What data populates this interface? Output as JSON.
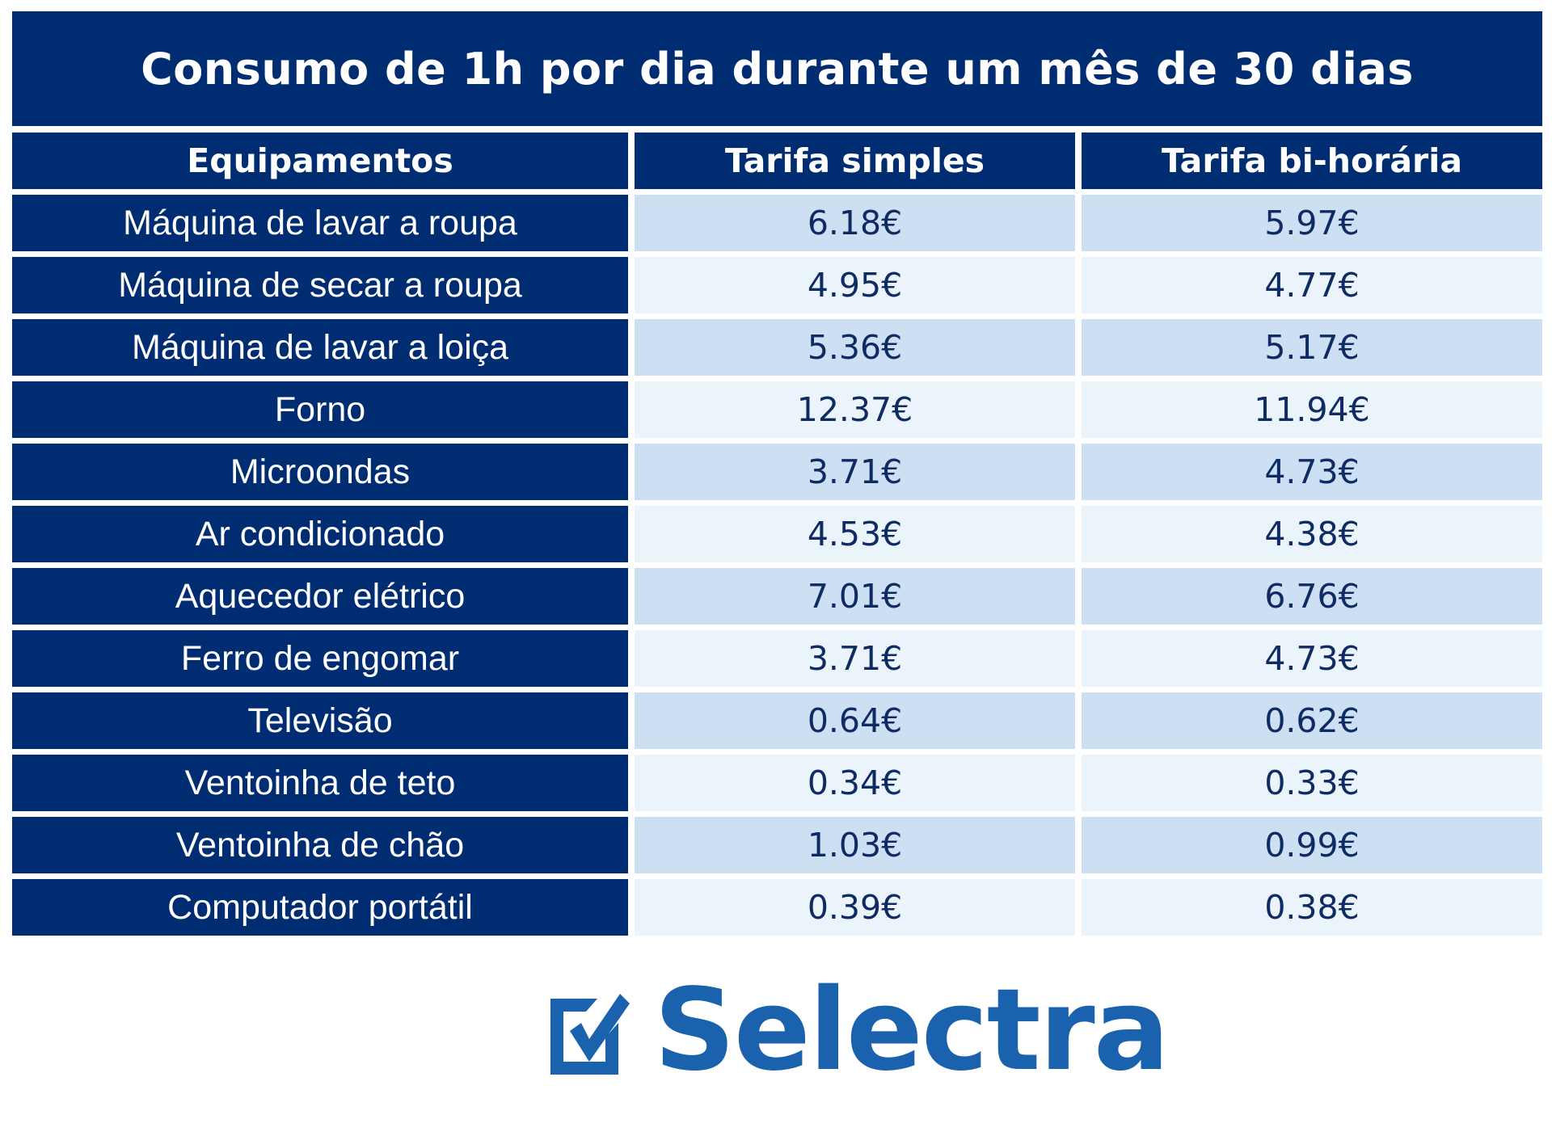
{
  "title": "Consumo de 1h por dia durante um mês de 30 dias",
  "headers": [
    "Equipamentos",
    "Tarifa simples",
    "Tarifa bi-horária"
  ],
  "rows": [
    {
      "equipment": "Máquina de lavar a roupa",
      "simple": "6.18€",
      "bi": "5.97€"
    },
    {
      "equipment": "Máquina de secar a roupa",
      "simple": "4.95€",
      "bi": "4.77€"
    },
    {
      "equipment": "Máquina de lavar a loiça",
      "simple": "5.36€",
      "bi": "5.17€"
    },
    {
      "equipment": "Forno",
      "simple": "12.37€",
      "bi": "11.94€"
    },
    {
      "equipment": "Microondas",
      "simple": "3.71€",
      "bi": "4.73€"
    },
    {
      "equipment": "Ar condicionado",
      "simple": "4.53€",
      "bi": "4.38€"
    },
    {
      "equipment": "Aquecedor elétrico",
      "simple": "7.01€",
      "bi": "6.76€"
    },
    {
      "equipment": "Ferro de engomar",
      "simple": "3.71€",
      "bi": "4.73€"
    },
    {
      "equipment": "Televisão",
      "simple": "0.64€",
      "bi": "0.62€"
    },
    {
      "equipment": "Ventoinha de teto",
      "simple": "0.34€",
      "bi": "0.33€"
    },
    {
      "equipment": "Ventoinha de chão",
      "simple": "1.03€",
      "bi": "0.99€"
    },
    {
      "equipment": "Computador portátil",
      "simple": "0.39€",
      "bi": "0.38€"
    }
  ],
  "logo": {
    "text": "Selectra",
    "icon": "checkbox-check-icon"
  },
  "colors": {
    "header_bg": "#002d72",
    "row_dark": "#cddff3",
    "row_light": "#ebf4fb",
    "value_text": "#0f2b63",
    "brand": "#1a62ad"
  }
}
